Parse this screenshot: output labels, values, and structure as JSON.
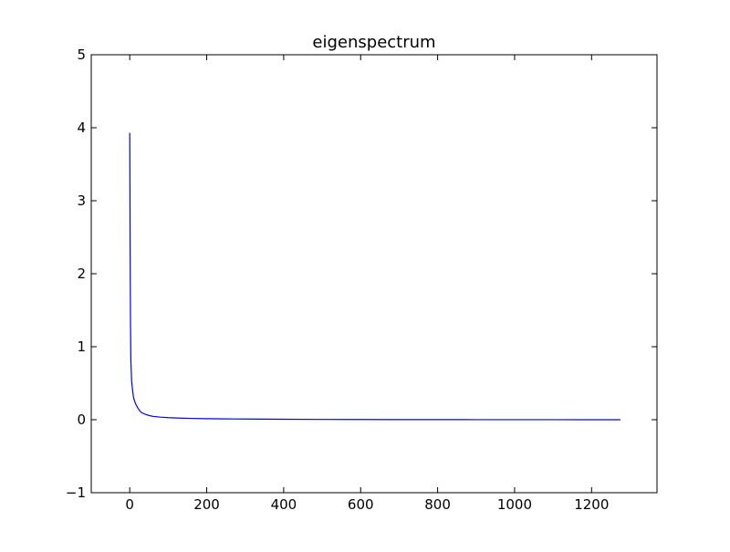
{
  "chart_data": {
    "type": "line",
    "title": "eigenspectrum",
    "xlabel": "",
    "ylabel": "",
    "xlim": [
      -100,
      1370
    ],
    "ylim": [
      -1,
      5
    ],
    "xticks": [
      0,
      200,
      400,
      600,
      800,
      1000,
      1200
    ],
    "yticks": [
      -1,
      0,
      1,
      2,
      3,
      4,
      5
    ],
    "xtick_labels": [
      "0",
      "200",
      "400",
      "600",
      "800",
      "1000",
      "1200"
    ],
    "ytick_labels": [
      "−1",
      "0",
      "1",
      "2",
      "3",
      "4",
      "5"
    ],
    "grid": false,
    "line_color": "#0000ff",
    "series": [
      {
        "x": [
          0,
          1,
          2,
          3,
          5,
          8,
          10,
          15,
          20,
          25,
          30,
          40,
          50,
          60,
          80,
          100,
          130,
          160,
          200,
          250,
          300,
          400,
          500,
          600,
          700,
          800,
          900,
          1000,
          1100,
          1200,
          1275
        ],
        "values": [
          3.93,
          2.3,
          1.3,
          0.8,
          0.52,
          0.38,
          0.3,
          0.22,
          0.17,
          0.13,
          0.1,
          0.075,
          0.058,
          0.046,
          0.035,
          0.028,
          0.022,
          0.018,
          0.014,
          0.011,
          0.009,
          0.006,
          0.004,
          0.003,
          0.002,
          0.0015,
          0.001,
          0.0008,
          0.0005,
          0.0003,
          0.0002
        ]
      }
    ]
  }
}
